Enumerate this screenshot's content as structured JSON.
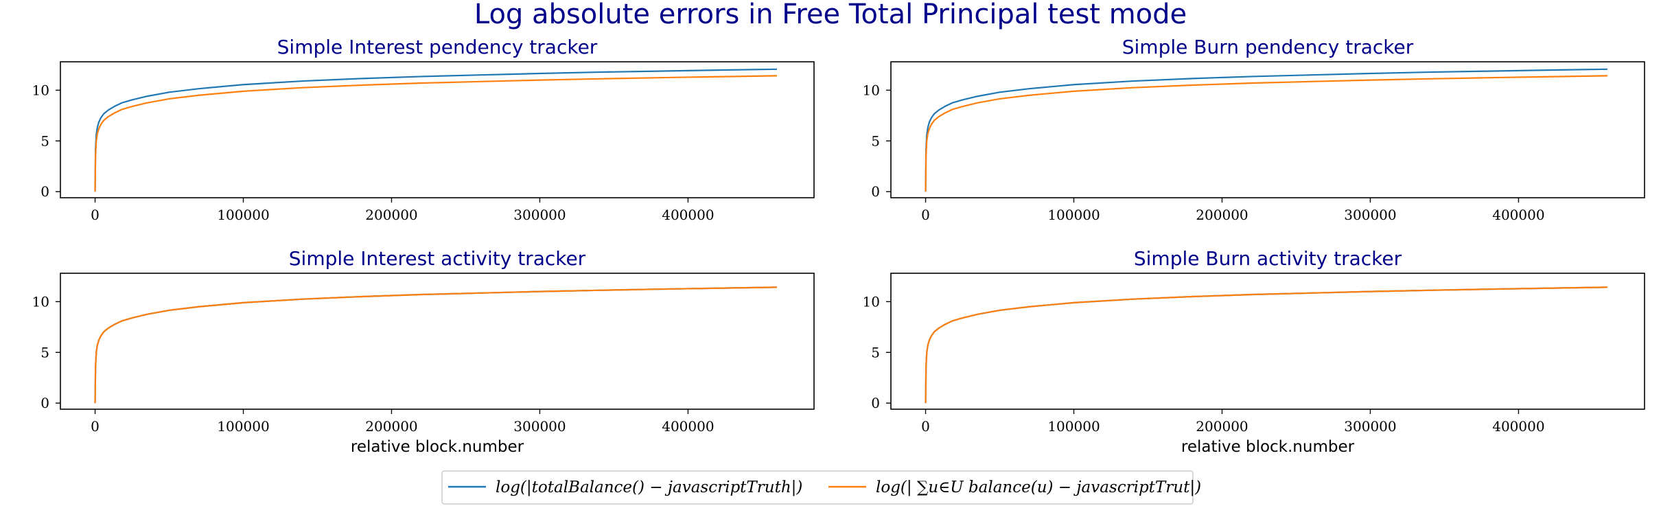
{
  "chart_data": {
    "suptitle": "Log absolute errors in Free Total Principal test mode",
    "type": "line",
    "legend": {
      "placement": "bottom-center",
      "entries": [
        {
          "label": "log(|totalBalance() − javascriptTruth|)",
          "color": "#1f77b4"
        },
        {
          "label": "log(| ∑u∈U balance(u) − javascriptTrut|)",
          "color": "#ff7f0e"
        }
      ]
    },
    "subplots": [
      {
        "title": "Simple Interest pendency tracker",
        "xlabel": "",
        "xlim": [
          -23400,
          485000
        ],
        "ylim": [
          -0.6,
          12.8
        ],
        "xticks": [
          0,
          100000,
          200000,
          300000,
          400000
        ],
        "yticks": [
          0,
          5,
          10
        ],
        "series": [
          {
            "name": "log(|totalBalance() − javascriptTruth|)",
            "color": "#1f77b4",
            "x": [
              0,
              300,
              800,
              1500,
              2500,
              4000,
              6000,
              9000,
              13000,
              18000,
              25000,
              35000,
              50000,
              70000,
              100000,
              140000,
              180000,
              220000,
              260000,
              300000,
              340000,
              380000,
              420000,
              460000
            ],
            "y": [
              0.0,
              4.2,
              5.6,
              6.3,
              6.85,
              7.3,
              7.7,
              8.05,
              8.4,
              8.75,
              9.05,
              9.4,
              9.8,
              10.15,
              10.55,
              10.9,
              11.15,
              11.35,
              11.5,
              11.65,
              11.78,
              11.88,
              11.98,
              12.07
            ]
          },
          {
            "name": "log(| ∑u∈U balance(u) − javascriptTrut|)",
            "color": "#ff7f0e",
            "x": [
              0,
              300,
              800,
              1500,
              2500,
              4000,
              6000,
              9000,
              13000,
              18000,
              25000,
              35000,
              50000,
              70000,
              100000,
              140000,
              180000,
              220000,
              260000,
              300000,
              340000,
              380000,
              420000,
              460000
            ],
            "y": [
              0.0,
              3.6,
              5.0,
              5.7,
              6.2,
              6.65,
              7.05,
              7.4,
              7.75,
              8.1,
              8.4,
              8.75,
              9.15,
              9.5,
              9.9,
              10.25,
              10.5,
              10.7,
              10.85,
              11.0,
              11.12,
              11.23,
              11.33,
              11.42
            ]
          }
        ]
      },
      {
        "title": "Simple Burn pendency tracker",
        "xlabel": "",
        "xlim": [
          -23400,
          485000
        ],
        "ylim": [
          -0.6,
          12.8
        ],
        "xticks": [
          0,
          100000,
          200000,
          300000,
          400000
        ],
        "yticks": [
          0,
          5,
          10
        ],
        "series": [
          {
            "name": "log(|totalBalance() − javascriptTruth|)",
            "color": "#1f77b4",
            "x": [
              0,
              300,
              800,
              1500,
              2500,
              4000,
              6000,
              9000,
              13000,
              18000,
              25000,
              35000,
              50000,
              70000,
              100000,
              140000,
              180000,
              220000,
              260000,
              300000,
              340000,
              380000,
              420000,
              460000
            ],
            "y": [
              0.0,
              4.2,
              5.6,
              6.3,
              6.85,
              7.3,
              7.7,
              8.05,
              8.4,
              8.75,
              9.05,
              9.4,
              9.8,
              10.15,
              10.55,
              10.9,
              11.15,
              11.35,
              11.5,
              11.65,
              11.78,
              11.88,
              11.98,
              12.07
            ]
          },
          {
            "name": "log(| ∑u∈U balance(u) − javascriptTrut|)",
            "color": "#ff7f0e",
            "x": [
              0,
              300,
              800,
              1500,
              2500,
              4000,
              6000,
              9000,
              13000,
              18000,
              25000,
              35000,
              50000,
              70000,
              100000,
              140000,
              180000,
              220000,
              260000,
              300000,
              340000,
              380000,
              420000,
              460000
            ],
            "y": [
              0.0,
              3.6,
              5.0,
              5.7,
              6.2,
              6.65,
              7.05,
              7.4,
              7.75,
              8.1,
              8.4,
              8.75,
              9.15,
              9.5,
              9.9,
              10.25,
              10.5,
              10.7,
              10.85,
              11.0,
              11.12,
              11.23,
              11.33,
              11.42
            ]
          }
        ]
      },
      {
        "title": "Simple Interest activity tracker",
        "xlabel": "relative block.number",
        "xlim": [
          -23400,
          485000
        ],
        "ylim": [
          -0.6,
          12.8
        ],
        "xticks": [
          0,
          100000,
          200000,
          300000,
          400000
        ],
        "yticks": [
          0,
          5,
          10
        ],
        "series": [
          {
            "name": "log(|totalBalance() − javascriptTruth|)",
            "color": "#1f77b4",
            "x": [
              0,
              300,
              800,
              1500,
              2500,
              4000,
              6000,
              9000,
              13000,
              18000,
              25000,
              35000,
              50000,
              70000,
              100000,
              140000,
              180000,
              220000,
              260000,
              300000,
              340000,
              380000,
              420000,
              460000
            ],
            "y": [
              0.0,
              3.6,
              5.0,
              5.7,
              6.2,
              6.65,
              7.05,
              7.4,
              7.75,
              8.1,
              8.4,
              8.75,
              9.15,
              9.5,
              9.9,
              10.25,
              10.5,
              10.7,
              10.85,
              11.0,
              11.12,
              11.23,
              11.33,
              11.42
            ]
          },
          {
            "name": "log(| ∑u∈U balance(u) − javascriptTrut|)",
            "color": "#ff7f0e",
            "x": [
              0,
              300,
              800,
              1500,
              2500,
              4000,
              6000,
              9000,
              13000,
              18000,
              25000,
              35000,
              50000,
              70000,
              100000,
              140000,
              180000,
              220000,
              260000,
              300000,
              340000,
              380000,
              420000,
              460000
            ],
            "y": [
              0.0,
              3.6,
              5.0,
              5.7,
              6.2,
              6.65,
              7.05,
              7.4,
              7.75,
              8.1,
              8.4,
              8.75,
              9.15,
              9.5,
              9.9,
              10.25,
              10.5,
              10.7,
              10.85,
              11.0,
              11.12,
              11.23,
              11.33,
              11.42
            ]
          }
        ]
      },
      {
        "title": "Simple Burn activity tracker",
        "xlabel": "relative block.number",
        "xlim": [
          -23400,
          485000
        ],
        "ylim": [
          -0.6,
          12.8
        ],
        "xticks": [
          0,
          100000,
          200000,
          300000,
          400000
        ],
        "yticks": [
          0,
          5,
          10
        ],
        "series": [
          {
            "name": "log(|totalBalance() − javascriptTruth|)",
            "color": "#1f77b4",
            "x": [
              0,
              300,
              800,
              1500,
              2500,
              4000,
              6000,
              9000,
              13000,
              18000,
              25000,
              35000,
              50000,
              70000,
              100000,
              140000,
              180000,
              220000,
              260000,
              300000,
              340000,
              380000,
              420000,
              460000
            ],
            "y": [
              0.0,
              3.6,
              5.0,
              5.7,
              6.2,
              6.65,
              7.05,
              7.4,
              7.75,
              8.1,
              8.4,
              8.75,
              9.15,
              9.5,
              9.9,
              10.25,
              10.5,
              10.7,
              10.85,
              11.0,
              11.12,
              11.23,
              11.33,
              11.42
            ]
          },
          {
            "name": "log(| ∑u∈U balance(u) − javascriptTrut|)",
            "color": "#ff7f0e",
            "x": [
              0,
              300,
              800,
              1500,
              2500,
              4000,
              6000,
              9000,
              13000,
              18000,
              25000,
              35000,
              50000,
              70000,
              100000,
              140000,
              180000,
              220000,
              260000,
              300000,
              340000,
              380000,
              420000,
              460000
            ],
            "y": [
              0.0,
              3.6,
              5.0,
              5.7,
              6.2,
              6.65,
              7.05,
              7.4,
              7.75,
              8.1,
              8.4,
              8.75,
              9.15,
              9.5,
              9.9,
              10.25,
              10.5,
              10.7,
              10.85,
              11.0,
              11.12,
              11.23,
              11.33,
              11.42
            ]
          }
        ]
      }
    ]
  }
}
